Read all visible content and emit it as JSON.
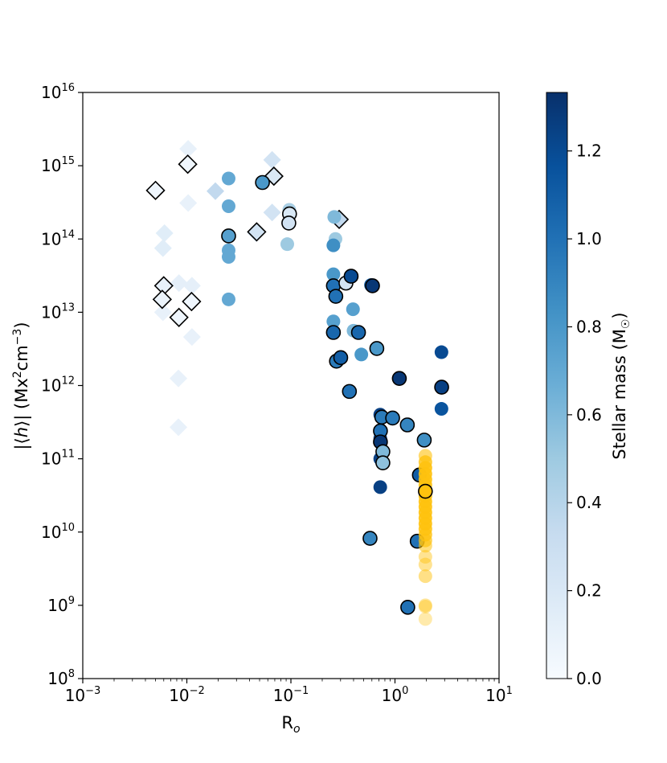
{
  "chart_data": {
    "type": "scatter",
    "x_scale": "log",
    "y_scale": "log",
    "xlim": [
      0.001,
      10
    ],
    "ylim": [
      100000000.0,
      1e+16
    ],
    "xlabel": "R_o",
    "ylabel": "|⟨h⟩| (Mx²cm⁻³)",
    "x_ticks": [
      {
        "base": "10",
        "exp": "−3",
        "value": 0.001
      },
      {
        "base": "10",
        "exp": "−2",
        "value": 0.01
      },
      {
        "base": "10",
        "exp": "−1",
        "value": 0.1
      },
      {
        "base": "10",
        "exp": "0",
        "value": 1
      },
      {
        "base": "10",
        "exp": "1",
        "value": 10
      }
    ],
    "y_ticks": [
      {
        "base": "10",
        "exp": "8",
        "value": 100000000.0
      },
      {
        "base": "10",
        "exp": "9",
        "value": 1000000000.0
      },
      {
        "base": "10",
        "exp": "10",
        "value": 10000000000.0
      },
      {
        "base": "10",
        "exp": "11",
        "value": 100000000000.0
      },
      {
        "base": "10",
        "exp": "12",
        "value": 1000000000000.0
      },
      {
        "base": "10",
        "exp": "13",
        "value": 10000000000000.0
      },
      {
        "base": "10",
        "exp": "14",
        "value": 100000000000000.0
      },
      {
        "base": "10",
        "exp": "15",
        "value": 1000000000000000.0
      },
      {
        "base": "10",
        "exp": "16",
        "value": 1e+16
      }
    ],
    "colorbar": {
      "label": "Stellar mass (M☉)",
      "range": [
        0.0,
        1.333
      ],
      "cmap": "Blues",
      "ticks": [
        "0.0",
        "0.2",
        "0.4",
        "0.6",
        "0.8",
        "1.0",
        "1.2"
      ],
      "tick_values": [
        0.0,
        0.2,
        0.4,
        0.6,
        0.8,
        1.0,
        1.2
      ]
    },
    "colors": {
      "sun_like": "#ffc20e"
    },
    "series": [
      {
        "marker": "diamond",
        "points": [
          {
            "x": 0.0103,
            "y": 1700000000000000.0,
            "m": 0.1,
            "outline": false
          },
          {
            "x": 0.0103,
            "y": 310000000000000.0,
            "m": 0.1,
            "outline": false
          },
          {
            "x": 0.0061,
            "y": 120000000000000.0,
            "m": 0.15,
            "outline": false
          },
          {
            "x": 0.0059,
            "y": 75000000000000.0,
            "m": 0.15,
            "outline": false
          },
          {
            "x": 0.0059,
            "y": 10000000000000.0,
            "m": 0.1,
            "outline": false
          },
          {
            "x": 0.0084,
            "y": 25000000000000.0,
            "m": 0.12,
            "outline": false
          },
          {
            "x": 0.0112,
            "y": 23000000000000.0,
            "m": 0.12,
            "outline": false
          },
          {
            "x": 0.0112,
            "y": 4600000000000.0,
            "m": 0.1,
            "outline": false
          },
          {
            "x": 0.0083,
            "y": 1250000000000.0,
            "m": 0.1,
            "outline": false
          },
          {
            "x": 0.0083,
            "y": 270000000000.0,
            "m": 0.1,
            "outline": false
          },
          {
            "x": 0.0188,
            "y": 450000000000000.0,
            "m": 0.35,
            "outline": false
          },
          {
            "x": 0.066,
            "y": 1200000000000000.0,
            "m": 0.25,
            "outline": false
          },
          {
            "x": 0.066,
            "y": 230000000000000.0,
            "m": 0.25,
            "outline": false
          },
          {
            "x": 0.0464,
            "y": 120000000000000.0,
            "m": 0.25,
            "outline": false
          },
          {
            "x": 0.005,
            "y": 460000000000000.0,
            "m": 0.05,
            "outline": true
          },
          {
            "x": 0.0102,
            "y": 1050000000000000.0,
            "m": 0.05,
            "outline": true
          },
          {
            "x": 0.006,
            "y": 23000000000000.0,
            "m": 0.1,
            "outline": true
          },
          {
            "x": 0.0058,
            "y": 15000000000000.0,
            "m": 0.08,
            "outline": true
          },
          {
            "x": 0.0111,
            "y": 14000000000000.0,
            "m": 0.05,
            "outline": true
          },
          {
            "x": 0.0084,
            "y": 8500000000000.0,
            "m": 0.05,
            "outline": true
          },
          {
            "x": 0.0469,
            "y": 125000000000000.0,
            "m": 0.25,
            "outline": true
          },
          {
            "x": 0.0686,
            "y": 720000000000000.0,
            "m": 0.2,
            "outline": true
          },
          {
            "x": 0.291,
            "y": 185000000000000.0,
            "m": 0.35,
            "outline": true
          }
        ]
      },
      {
        "marker": "circle",
        "points": [
          {
            "x": 0.0252,
            "y": 670000000000000.0,
            "m": 0.7,
            "outline": false
          },
          {
            "x": 0.0252,
            "y": 280000000000000.0,
            "m": 0.7,
            "outline": false
          },
          {
            "x": 0.0252,
            "y": 70000000000000.0,
            "m": 0.7,
            "outline": false
          },
          {
            "x": 0.0252,
            "y": 57000000000000.0,
            "m": 0.7,
            "outline": false
          },
          {
            "x": 0.0252,
            "y": 15000000000000.0,
            "m": 0.7,
            "outline": false
          },
          {
            "x": 0.0252,
            "y": 110000000000000.0,
            "m": 0.75,
            "outline": true
          },
          {
            "x": 0.0533,
            "y": 590000000000000.0,
            "m": 0.8,
            "outline": true
          },
          {
            "x": 0.0965,
            "y": 250000000000000.0,
            "m": 0.45,
            "outline": false
          },
          {
            "x": 0.0923,
            "y": 85000000000000.0,
            "m": 0.5,
            "outline": false
          },
          {
            "x": 0.097,
            "y": 220000000000000.0,
            "m": 0.2,
            "outline": true
          },
          {
            "x": 0.0955,
            "y": 165000000000000.0,
            "m": 0.25,
            "outline": true
          },
          {
            "x": 0.261,
            "y": 200000000000000.0,
            "m": 0.6,
            "outline": false
          },
          {
            "x": 0.268,
            "y": 100000000000000.0,
            "m": 0.5,
            "outline": false
          },
          {
            "x": 0.256,
            "y": 82000000000000.0,
            "m": 0.85,
            "outline": false
          },
          {
            "x": 0.256,
            "y": 33000000000000.0,
            "m": 0.8,
            "outline": false
          },
          {
            "x": 0.256,
            "y": 23000000000000.0,
            "m": 1.0,
            "outline": true
          },
          {
            "x": 0.27,
            "y": 16500000000000.0,
            "m": 1.0,
            "outline": true
          },
          {
            "x": 0.256,
            "y": 7500000000000.0,
            "m": 0.75,
            "outline": false
          },
          {
            "x": 0.256,
            "y": 5300000000000.0,
            "m": 1.05,
            "outline": true
          },
          {
            "x": 0.274,
            "y": 2150000000000.0,
            "m": 0.95,
            "outline": true
          },
          {
            "x": 0.301,
            "y": 2400000000000.0,
            "m": 1.1,
            "outline": true
          },
          {
            "x": 0.338,
            "y": 25000000000000.0,
            "m": 0.25,
            "outline": true
          },
          {
            "x": 0.379,
            "y": 31000000000000.0,
            "m": 1.2,
            "outline": true
          },
          {
            "x": 0.395,
            "y": 11000000000000.0,
            "m": 0.75,
            "outline": false
          },
          {
            "x": 0.4,
            "y": 5600000000000.0,
            "m": 0.6,
            "outline": false
          },
          {
            "x": 0.446,
            "y": 5300000000000.0,
            "m": 1.05,
            "outline": true
          },
          {
            "x": 0.475,
            "y": 2650000000000.0,
            "m": 0.8,
            "outline": false
          },
          {
            "x": 0.365,
            "y": 830000000000.0,
            "m": 1.0,
            "outline": true
          },
          {
            "x": 0.588,
            "y": 23500000000000.0,
            "m": 1.1,
            "outline": false
          },
          {
            "x": 0.608,
            "y": 23000000000000.0,
            "m": 1.3,
            "outline": true
          },
          {
            "x": 0.669,
            "y": 3200000000000.0,
            "m": 0.8,
            "outline": true
          },
          {
            "x": 0.722,
            "y": 400000000000.0,
            "m": 1.25,
            "outline": false
          },
          {
            "x": 0.722,
            "y": 230000000000.0,
            "m": 1.25,
            "outline": false
          },
          {
            "x": 0.722,
            "y": 190000000000.0,
            "m": 1.25,
            "outline": false
          },
          {
            "x": 0.722,
            "y": 100000000000.0,
            "m": 1.25,
            "outline": false
          },
          {
            "x": 0.722,
            "y": 41000000000.0,
            "m": 1.25,
            "outline": false
          },
          {
            "x": 0.747,
            "y": 370000000000.0,
            "m": 0.95,
            "outline": true
          },
          {
            "x": 0.725,
            "y": 240000000000.0,
            "m": 1.0,
            "outline": true
          },
          {
            "x": 0.725,
            "y": 170000000000.0,
            "m": 1.3,
            "outline": true
          },
          {
            "x": 0.765,
            "y": 125000000000.0,
            "m": 0.6,
            "outline": true
          },
          {
            "x": 0.765,
            "y": 88000000000.0,
            "m": 0.55,
            "outline": true
          },
          {
            "x": 0.949,
            "y": 360000000000.0,
            "m": 0.95,
            "outline": true
          },
          {
            "x": 1.101,
            "y": 1250000000000.0,
            "m": 1.3,
            "outline": true
          },
          {
            "x": 1.314,
            "y": 290000000000.0,
            "m": 0.9,
            "outline": true
          },
          {
            "x": 0.576,
            "y": 8200000000.0,
            "m": 0.9,
            "outline": true
          },
          {
            "x": 1.327,
            "y": 940000000.0,
            "m": 1.0,
            "outline": true
          },
          {
            "x": 1.635,
            "y": 7500000000.0,
            "m": 1.0,
            "outline": true
          },
          {
            "x": 1.716,
            "y": 60000000000.0,
            "m": 1.1,
            "outline": true
          },
          {
            "x": 1.911,
            "y": 180000000000.0,
            "m": 0.85,
            "outline": true
          },
          {
            "x": 2.797,
            "y": 2850000000000.0,
            "m": 1.2,
            "outline": false
          },
          {
            "x": 2.797,
            "y": 940000000000.0,
            "m": 1.25,
            "outline": false
          },
          {
            "x": 2.808,
            "y": 950000000000.0,
            "m": 1.25,
            "outline": true
          },
          {
            "x": 2.797,
            "y": 480000000000.0,
            "m": 1.15,
            "outline": false
          }
        ]
      },
      {
        "marker": "circle",
        "color": "sun_like",
        "points": [
          {
            "x": 1.96,
            "y": 110000000000.0,
            "alpha": 0.6
          },
          {
            "x": 1.96,
            "y": 90000000000.0,
            "alpha": 0.8
          },
          {
            "x": 1.96,
            "y": 75000000000.0,
            "alpha": 0.9
          },
          {
            "x": 1.96,
            "y": 62000000000.0,
            "alpha": 0.9
          },
          {
            "x": 1.96,
            "y": 52000000000.0,
            "alpha": 0.9
          },
          {
            "x": 1.96,
            "y": 44000000000.0,
            "alpha": 0.9
          },
          {
            "x": 1.96,
            "y": 37000000000.0,
            "alpha": 0.9
          },
          {
            "x": 1.96,
            "y": 31000000000.0,
            "alpha": 0.9
          },
          {
            "x": 1.96,
            "y": 26000000000.0,
            "alpha": 0.9
          },
          {
            "x": 1.96,
            "y": 22000000000.0,
            "alpha": 0.9
          },
          {
            "x": 1.96,
            "y": 18500000000.0,
            "alpha": 0.9
          },
          {
            "x": 1.96,
            "y": 15500000000.0,
            "alpha": 0.9
          },
          {
            "x": 1.96,
            "y": 13000000000.0,
            "alpha": 0.9
          },
          {
            "x": 1.96,
            "y": 11000000000.0,
            "alpha": 0.85
          },
          {
            "x": 1.96,
            "y": 9200000000.0,
            "alpha": 0.8
          },
          {
            "x": 1.96,
            "y": 7700000000.0,
            "alpha": 0.7
          },
          {
            "x": 1.96,
            "y": 6500000000.0,
            "alpha": 0.55
          },
          {
            "x": 1.96,
            "y": 4600000000.0,
            "alpha": 0.45
          },
          {
            "x": 1.96,
            "y": 3600000000.0,
            "alpha": 0.45
          },
          {
            "x": 1.96,
            "y": 2500000000.0,
            "alpha": 0.5
          },
          {
            "x": 1.96,
            "y": 1000000000.0,
            "alpha": 0.4
          },
          {
            "x": 1.96,
            "y": 960000000.0,
            "alpha": 0.4
          },
          {
            "x": 1.96,
            "y": 650000000.0,
            "alpha": 0.35
          },
          {
            "x": 1.96,
            "y": 36000000000.0,
            "alpha": 1.0,
            "outline": true
          }
        ]
      }
    ]
  }
}
